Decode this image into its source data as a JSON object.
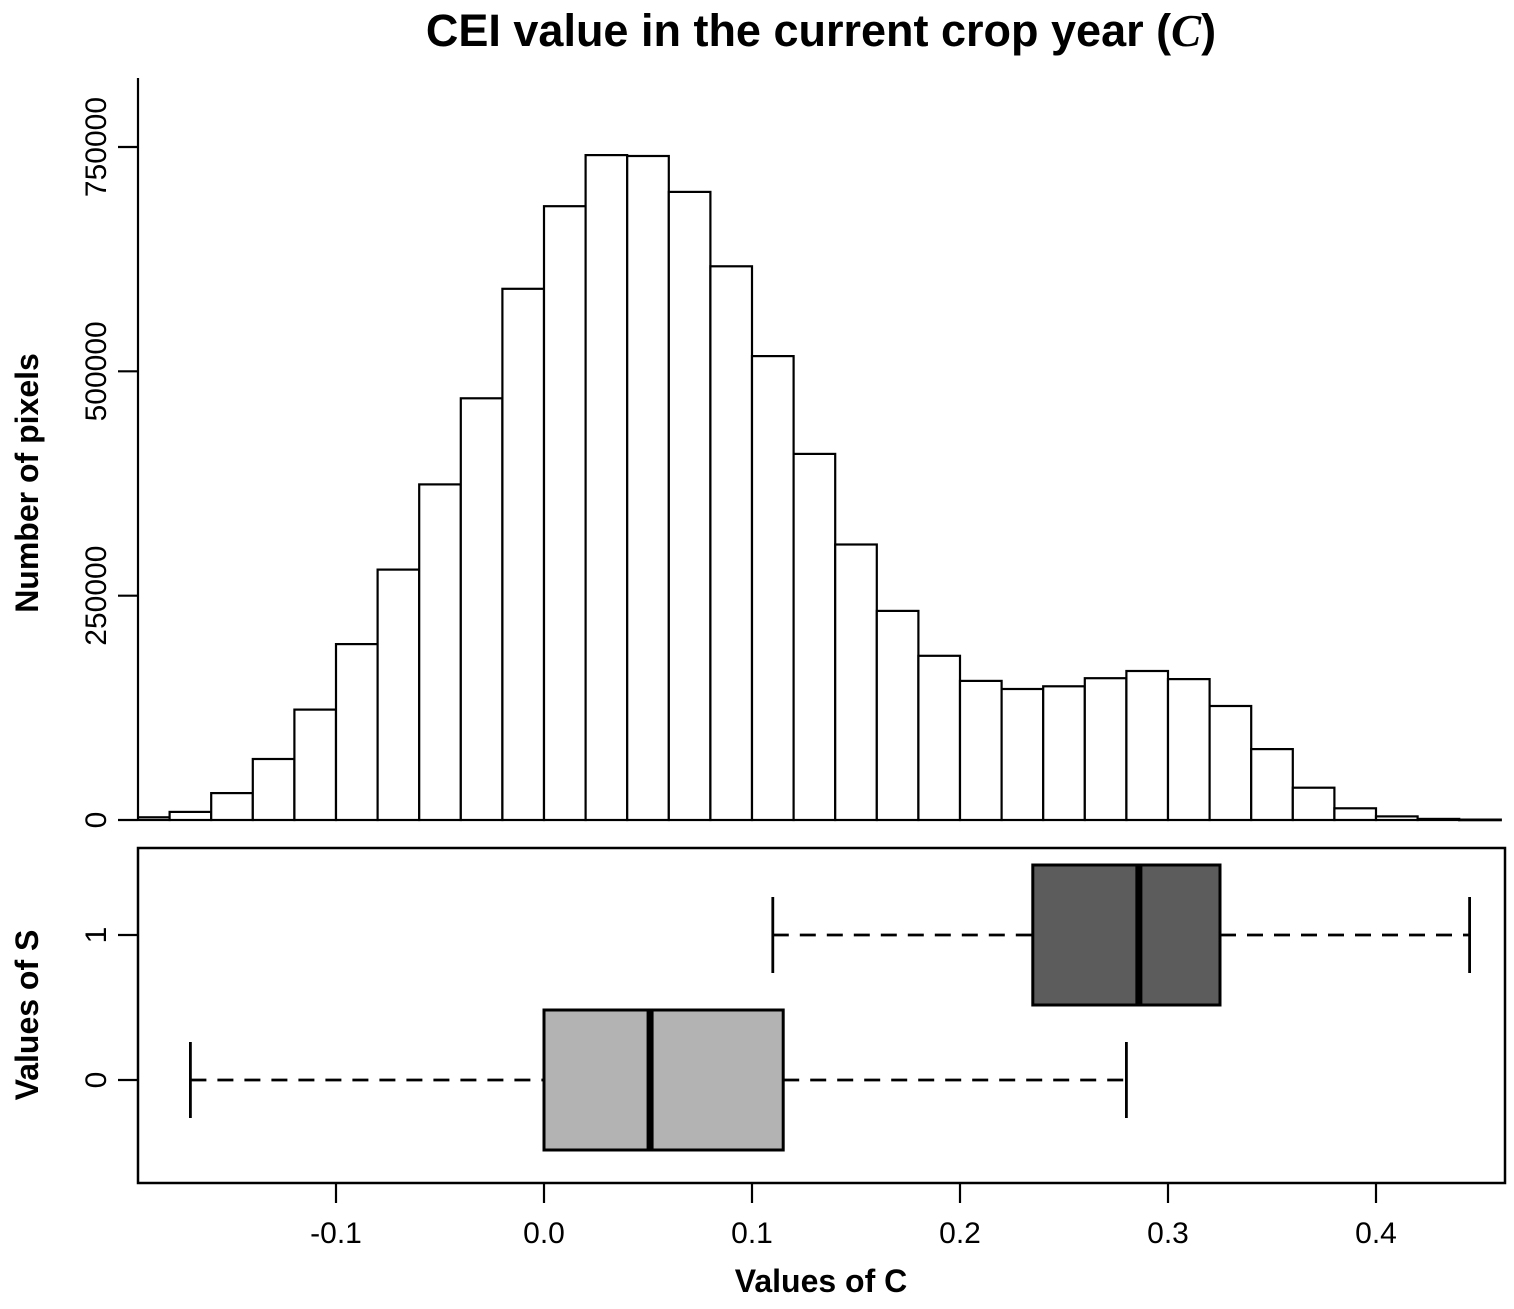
{
  "title": {
    "full": "CEI value in the current crop year (C)",
    "parts": {
      "before": "CEI value in the current crop year (",
      "math": "C",
      "after": ")"
    }
  },
  "colors": {
    "background": "#ffffff",
    "stroke": "#000000",
    "bar_fill": "#ffffff",
    "box_s0_fill": "#b3b3b3",
    "box_s1_fill": "#5c5c5c"
  },
  "chart_data": [
    {
      "type": "bar",
      "role": "histogram",
      "title": "CEI value in the current crop year (C)",
      "xlabel": "Values of C",
      "ylabel": "Number of pixels",
      "bin_start": -0.2,
      "bin_width": 0.02,
      "counts": [
        3000,
        9000,
        30000,
        68000,
        123000,
        196000,
        279000,
        374000,
        470000,
        592000,
        684000,
        741000,
        740000,
        700000,
        617000,
        517000,
        408000,
        307000,
        233000,
        183000,
        155000,
        146000,
        149000,
        158000,
        166000,
        157000,
        127000,
        79000,
        36000,
        13000,
        4000,
        1200,
        500
      ],
      "ytick_values": [
        0,
        250000,
        500000,
        750000
      ],
      "ytick_labels": [
        "0",
        "250000",
        "500000",
        "750000"
      ],
      "ylim": [
        0,
        800000
      ],
      "xlim": [
        -0.195,
        0.462
      ],
      "grid": false,
      "legend": "none"
    },
    {
      "type": "boxplot",
      "role": "boxplot",
      "xlabel": "Values of C",
      "ylabel": "Values of S",
      "xtick_labels": [
        "-0.1",
        "0.0",
        "0.1",
        "0.2",
        "0.3",
        "0.4"
      ],
      "xtick_values": [
        -0.1,
        0.0,
        0.1,
        0.2,
        0.3,
        0.4
      ],
      "series": [
        {
          "name": "0",
          "min": -0.17,
          "q1": 0.0,
          "median": 0.051,
          "q3": 0.115,
          "max": 0.28,
          "fill": "#b3b3b3"
        },
        {
          "name": "1",
          "min": 0.11,
          "q1": 0.235,
          "median": 0.286,
          "q3": 0.325,
          "max": 0.445,
          "fill": "#5c5c5c"
        }
      ]
    }
  ]
}
